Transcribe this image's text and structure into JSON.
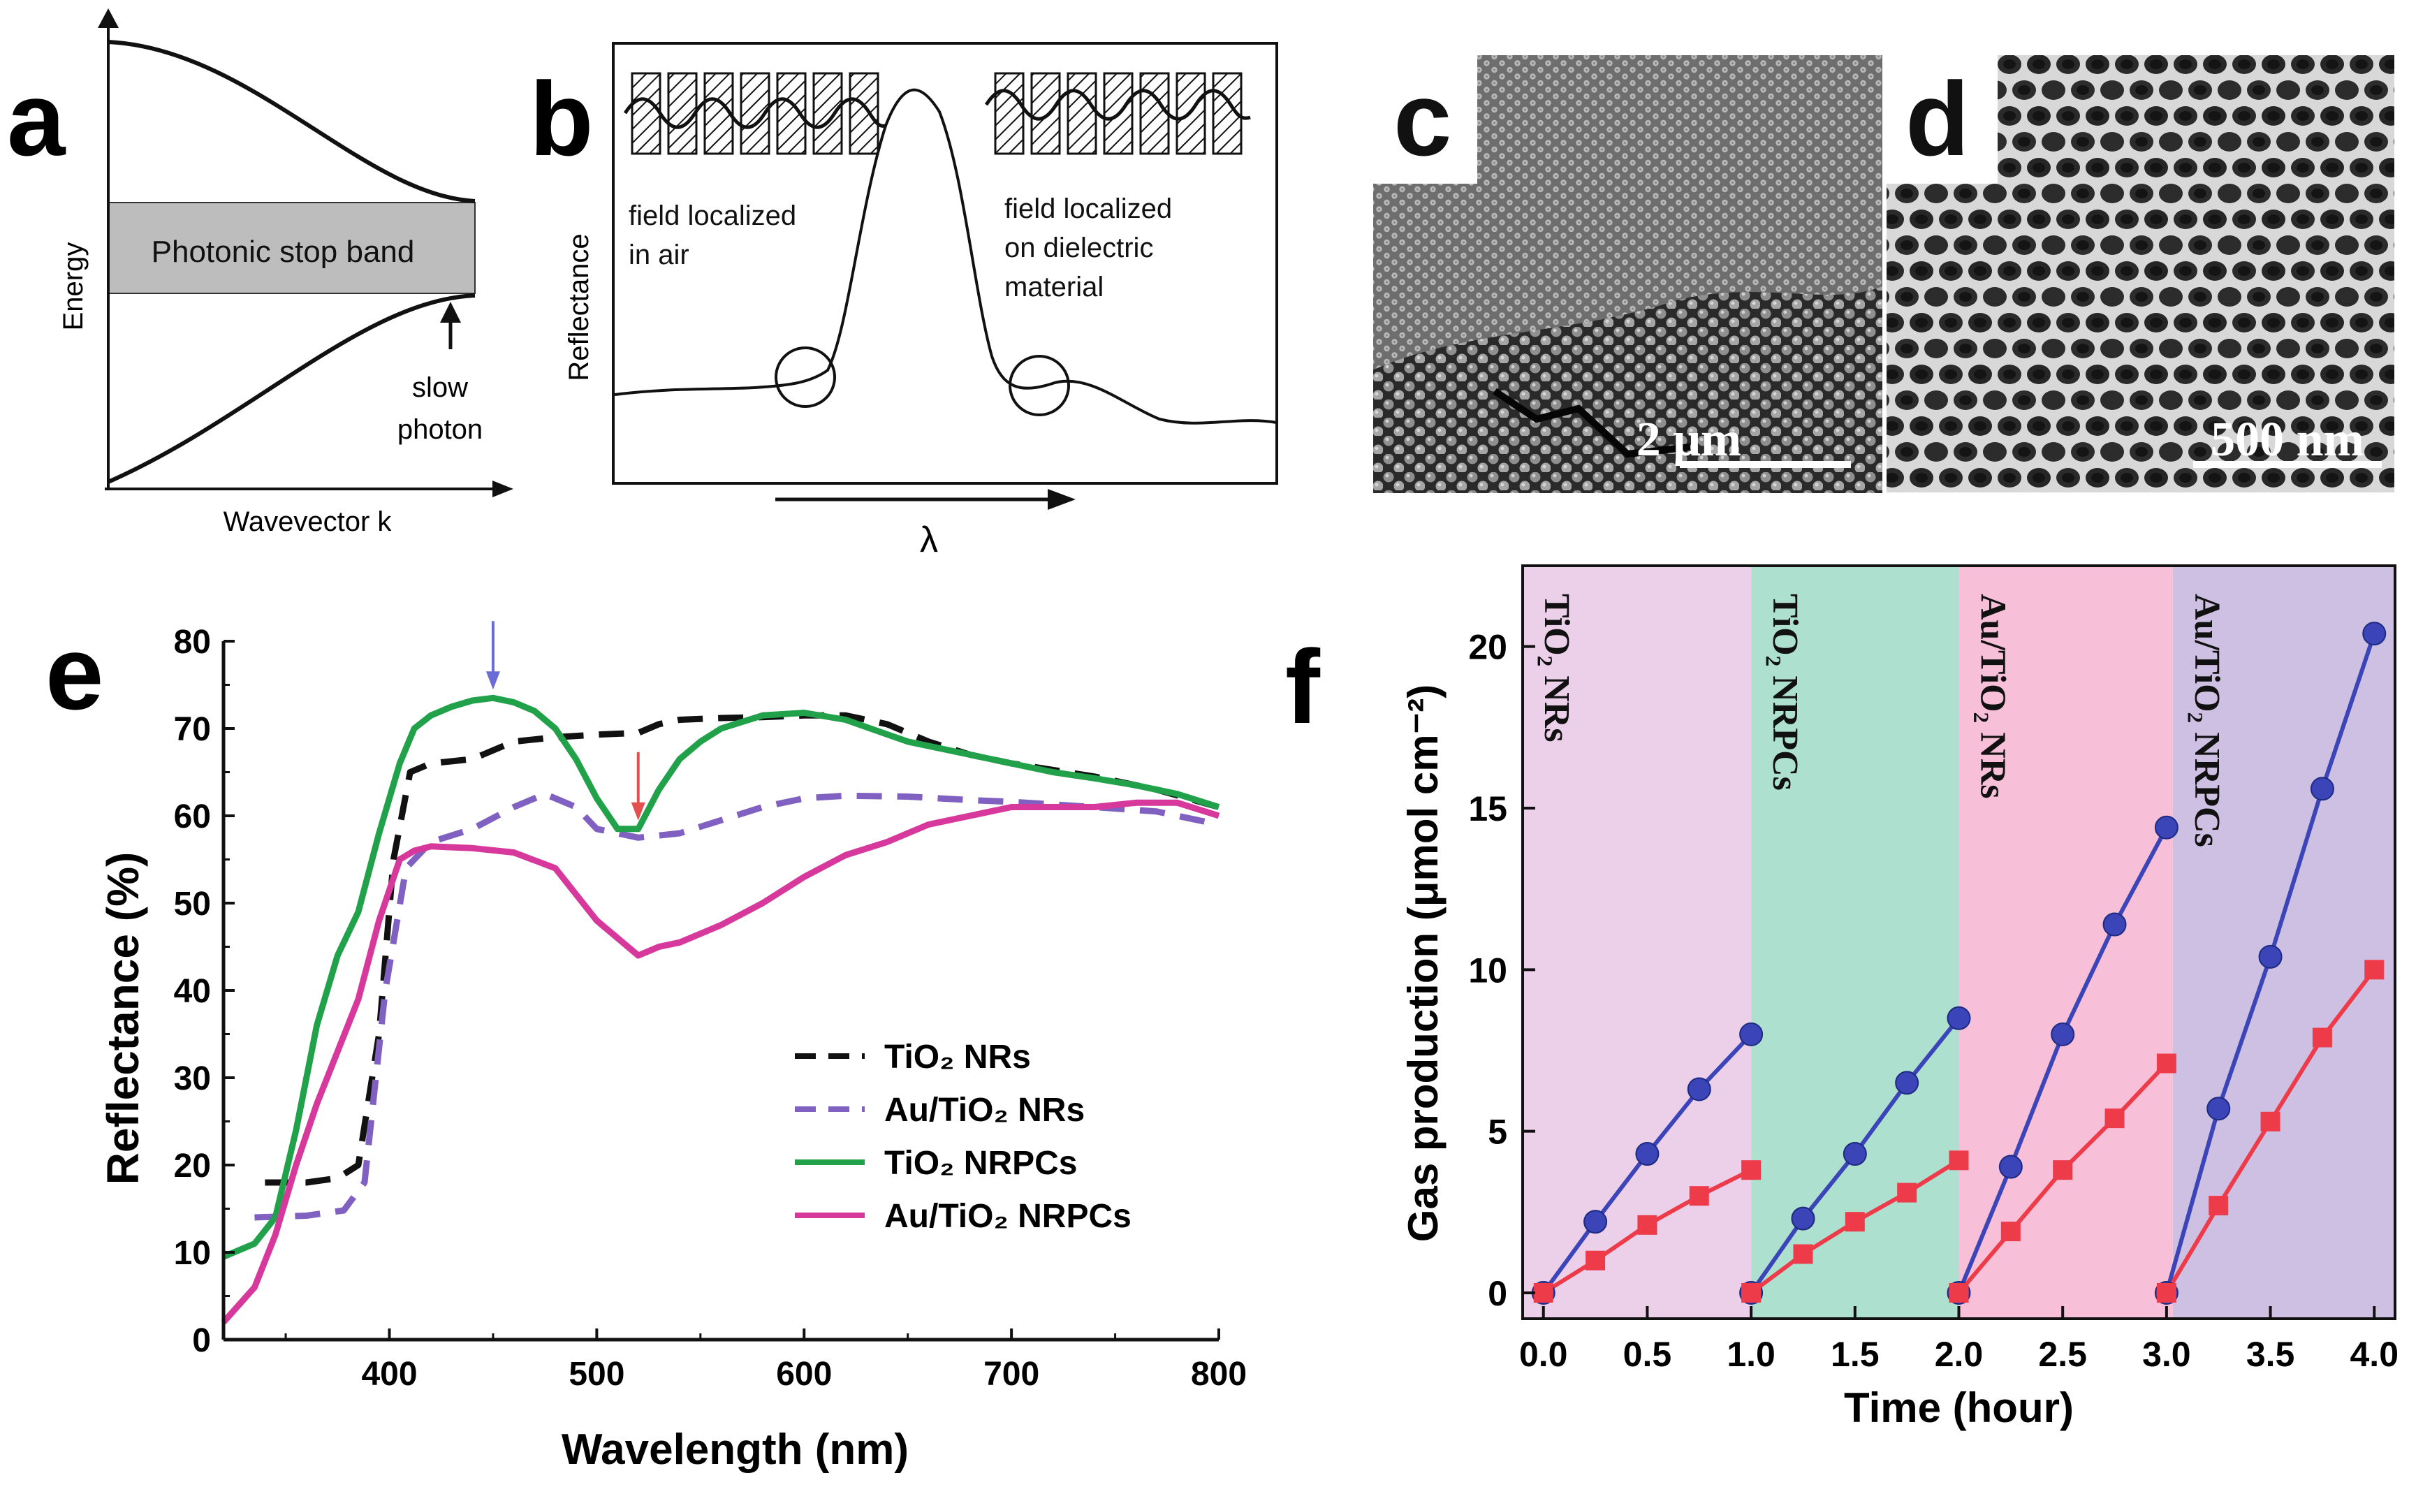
{
  "panels": {
    "a": {
      "label": "a",
      "ylabel": "Energy",
      "xlabel": "Wavevector k",
      "band_label": "Photonic stop band",
      "slow_photon_line1": "slow",
      "slow_photon_line2": "photon"
    },
    "b": {
      "label": "b",
      "ylabel": "Reflectance",
      "xlabel": "λ",
      "left_note_line1": "field localized",
      "left_note_line2": "in air",
      "right_note_line1": "field localized",
      "right_note_line2": "on dielectric",
      "right_note_line3": "material"
    },
    "c": {
      "label": "c",
      "scale_bar": "2 μm"
    },
    "d": {
      "label": "d",
      "scale_bar": "500 nm"
    },
    "e": {
      "label": "e"
    },
    "f": {
      "label": "f"
    }
  },
  "chart_data": [
    {
      "id": "e",
      "type": "line",
      "title": "",
      "xlabel": "Wavelength (nm)",
      "ylabel": "Reflectance (%)",
      "xlim": [
        320,
        800
      ],
      "ylim": [
        0,
        80
      ],
      "xticks": [
        400,
        500,
        600,
        700,
        800
      ],
      "yticks": [
        0,
        10,
        20,
        30,
        40,
        50,
        60,
        70,
        80
      ],
      "legend_position": "lower-right",
      "markers": [
        {
          "x": 450,
          "y": 73.5,
          "color": "#6b6bd6"
        },
        {
          "x": 520,
          "y": 58.5,
          "color": "#e25050"
        }
      ],
      "series": [
        {
          "name": "TiO₂ NRs",
          "color": "#111111",
          "style": "dashed",
          "x": [
            340,
            360,
            375,
            385,
            395,
            402,
            410,
            420,
            440,
            460,
            480,
            500,
            520,
            530,
            540,
            560,
            580,
            600,
            620,
            640,
            660,
            680,
            700,
            740,
            770,
            800
          ],
          "y": [
            18,
            18,
            18.5,
            20,
            35,
            55,
            65,
            66,
            66.5,
            68.5,
            69,
            69.3,
            69.5,
            70.5,
            71,
            71.2,
            71.3,
            71.5,
            71.5,
            70.5,
            68.5,
            67,
            66,
            64.5,
            63,
            61
          ]
        },
        {
          "name": "Au/TiO₂ NRs",
          "color": "#8060c0",
          "style": "dashed",
          "x": [
            335,
            360,
            378,
            388,
            398,
            408,
            420,
            440,
            460,
            475,
            490,
            500,
            520,
            540,
            560,
            580,
            600,
            620,
            650,
            680,
            700,
            740,
            770,
            800
          ],
          "y": [
            14,
            14.2,
            14.8,
            18,
            40,
            54,
            57,
            58.5,
            61,
            62.5,
            61,
            58.5,
            57.5,
            58,
            59.5,
            61,
            62,
            62.3,
            62.2,
            61.8,
            61.6,
            61,
            60.5,
            59
          ]
        },
        {
          "name": "TiO₂ NRPCs",
          "color": "#21a24a",
          "style": "solid",
          "x": [
            320,
            335,
            345,
            355,
            365,
            375,
            385,
            395,
            405,
            412,
            420,
            430,
            440,
            450,
            460,
            470,
            480,
            490,
            500,
            510,
            520,
            530,
            540,
            550,
            560,
            580,
            600,
            620,
            650,
            680,
            700,
            720,
            740,
            760,
            780,
            800
          ],
          "y": [
            9.5,
            11,
            14,
            24,
            36,
            44,
            49,
            58,
            66,
            70,
            71.5,
            72.5,
            73.2,
            73.5,
            73,
            72,
            70,
            66.5,
            62,
            58.5,
            58.5,
            63,
            66.5,
            68.5,
            70,
            71.5,
            71.8,
            71,
            68.5,
            67,
            66,
            65,
            64.3,
            63.5,
            62.5,
            61
          ]
        },
        {
          "name": "Au/TiO₂ NRPCs",
          "color": "#d6399b",
          "style": "solid",
          "x": [
            320,
            335,
            345,
            355,
            365,
            375,
            385,
            395,
            405,
            412,
            420,
            440,
            460,
            480,
            490,
            500,
            510,
            515,
            520,
            525,
            530,
            540,
            560,
            580,
            600,
            620,
            640,
            660,
            680,
            700,
            720,
            740,
            760,
            780,
            800
          ],
          "y": [
            2,
            6,
            12,
            20,
            27,
            33,
            39,
            48,
            55,
            56,
            56.5,
            56.3,
            55.8,
            54,
            51,
            48,
            46,
            45,
            44,
            44.5,
            45,
            45.5,
            47.5,
            50,
            53,
            55.5,
            57,
            59,
            60,
            61,
            61,
            61,
            61.5,
            61.5,
            60
          ]
        }
      ]
    },
    {
      "id": "f",
      "type": "line",
      "title": "",
      "xlabel": "Time (hour)",
      "ylabel": "Gas production (μmol cm⁻²)",
      "xlim": [
        -0.1,
        4.1
      ],
      "ylim": [
        -0.8,
        22.5
      ],
      "xticks": [
        0.0,
        0.5,
        1.0,
        1.5,
        2.0,
        2.5,
        3.0,
        3.5,
        4.0
      ],
      "yticks": [
        0,
        5,
        10,
        15,
        20
      ],
      "regions": [
        {
          "label": "TiO₂ NRs",
          "from": -0.1,
          "to": 1.0,
          "color": "#ecd0ea"
        },
        {
          "label": "TiO₂ NRPCs",
          "from": 1.0,
          "to": 2.0,
          "color": "#aee0cf"
        },
        {
          "label": "Au/TiO₂ NRs",
          "from": 2.0,
          "to": 3.03,
          "color": "#f7c0d8"
        },
        {
          "label": "Au/TiO₂ NRPCs",
          "from": 3.03,
          "to": 4.1,
          "color": "#cdc0e2"
        }
      ],
      "series": [
        {
          "name": "blue circles",
          "color": "#3b45b8",
          "marker": "circle",
          "segments": [
            {
              "x": [
                0.0,
                0.25,
                0.5,
                0.75,
                1.0
              ],
              "y": [
                0,
                2.2,
                4.3,
                6.3,
                8.0
              ]
            },
            {
              "x": [
                1.0,
                1.25,
                1.5,
                1.75,
                2.0
              ],
              "y": [
                0,
                2.3,
                4.3,
                6.5,
                8.5
              ]
            },
            {
              "x": [
                2.0,
                2.25,
                2.5,
                2.75,
                3.0
              ],
              "y": [
                0,
                3.9,
                8.0,
                11.4,
                14.4
              ]
            },
            {
              "x": [
                3.0,
                3.25,
                3.5,
                3.75,
                4.0
              ],
              "y": [
                0,
                5.7,
                10.4,
                15.6,
                20.4
              ]
            }
          ]
        },
        {
          "name": "red squares",
          "color": "#ee3b4a",
          "marker": "square",
          "segments": [
            {
              "x": [
                0.0,
                0.25,
                0.5,
                0.75,
                1.0
              ],
              "y": [
                0,
                1.0,
                2.1,
                3.0,
                3.8
              ]
            },
            {
              "x": [
                1.0,
                1.25,
                1.5,
                1.75,
                2.0
              ],
              "y": [
                0,
                1.2,
                2.2,
                3.1,
                4.1
              ]
            },
            {
              "x": [
                2.0,
                2.25,
                2.5,
                2.75,
                3.0
              ],
              "y": [
                0,
                1.9,
                3.8,
                5.4,
                7.1
              ]
            },
            {
              "x": [
                3.0,
                3.25,
                3.5,
                3.75,
                4.0
              ],
              "y": [
                0,
                2.7,
                5.3,
                7.9,
                10.0
              ]
            }
          ]
        }
      ]
    }
  ]
}
